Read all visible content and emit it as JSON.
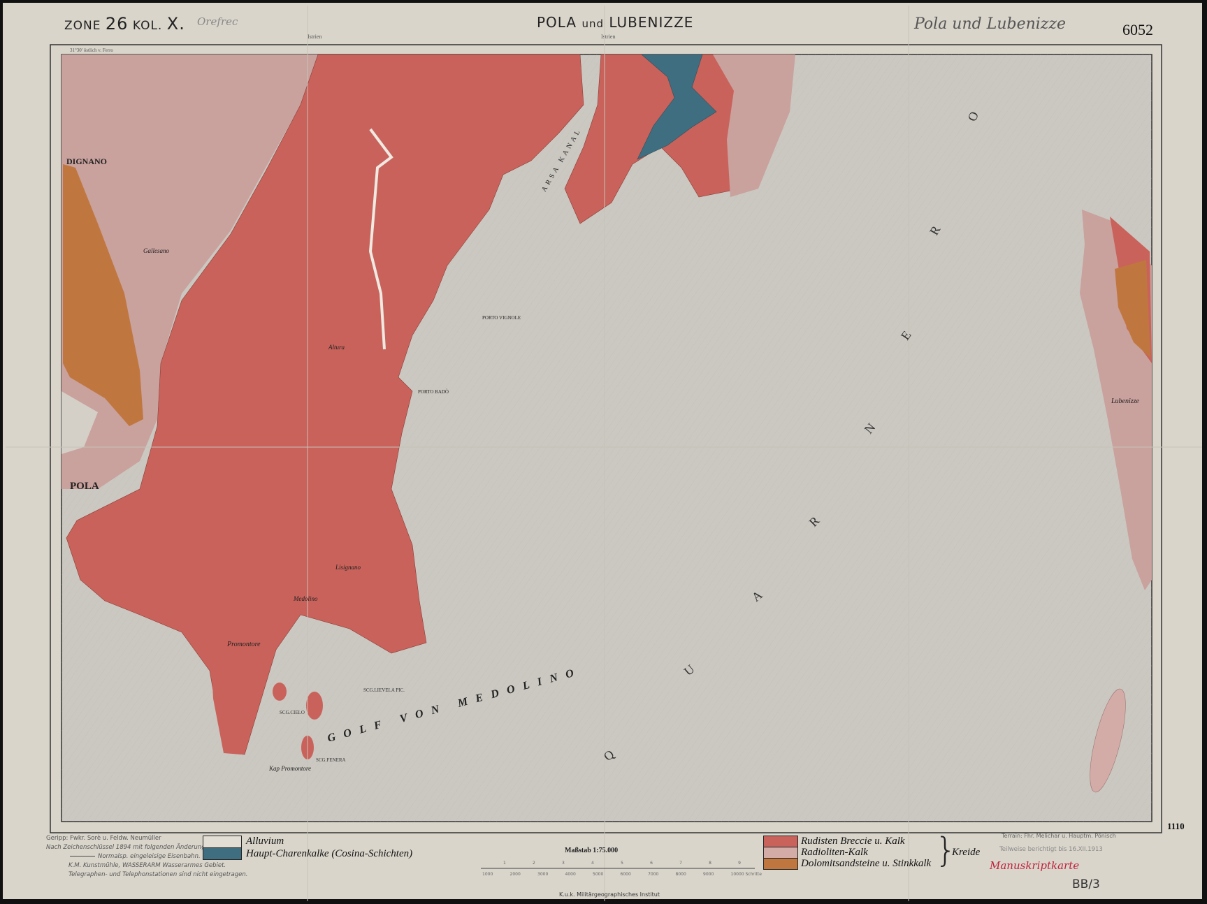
{
  "header": {
    "zone_label": "ZONE",
    "zone_number": "26",
    "kol_label": "KOL.",
    "kol_number": "X.",
    "pencil_note": "Orefrec",
    "title_main1": "POLA",
    "title_und": "und",
    "title_main2": "LUBENIZZE",
    "handwritten_title": "Pola und Lubenizze",
    "sheet_number": "6052",
    "region_label_top": "Istrien",
    "meridian_note": "31°30' östlich v. Ferro"
  },
  "map": {
    "place_names": {
      "dignano": "DIGNANO",
      "pola": "POLA",
      "gallesano": "Gallesano",
      "lubenizze": "Lubenizze",
      "promontore": "Promontore",
      "medolino": "Medolino",
      "lisignano": "Lisignano",
      "altura": "Altura",
      "porto_badò": "PORTO BADÒ",
      "porto_vignole": "PORTO VIGNOLE",
      "kap_promontore": "Kap Promontore",
      "scg_cielo": "SCG.CIELO",
      "scg_fenera": "SCG.FENERA",
      "scg_levela": "SCG.LIEVELA PIC.",
      "canale_arsa": "ARSA KANAL"
    },
    "sea_letters": [
      "Q",
      "U",
      "A",
      "R",
      "N",
      "E",
      "R",
      "O"
    ],
    "gulf_label": "GOLF VON MEDOLINO",
    "corner_number": "1110",
    "colors": {
      "sea": "#cbc8c1",
      "alluvium": "#dcd8cf",
      "haupt_charenkalke": "#3f6e80",
      "rudisten_breccie": "#c9625b",
      "radioliten_kalk": "#c9a19d",
      "dolomitsandsteine": "#c0773f"
    }
  },
  "legend": {
    "items": [
      {
        "label": "Alluvium",
        "color": "#e2ded6"
      },
      {
        "label": "Haupt-Charenkalke (Cosina-Schichten)",
        "color": "#3f6e80"
      },
      {
        "label": "Rudisten Breccie u. Kalk",
        "color": "#c9625b"
      },
      {
        "label": "Radioliten-Kalk",
        "color": "#d3aca8"
      },
      {
        "label": "Dolomitsandsteine u. Stinkkalk",
        "color": "#c0773f"
      }
    ],
    "group_label": "Kreide"
  },
  "footer": {
    "credits": [
      "Geripp: Fwkr. Sorè u. Feldw. Neumüller",
      "Nach Zeichenschlüssel 1894 mit folgenden Änderungen:",
      "Normalsp. eingeleisige Eisenbahn.",
      "K.M. Kunstmühle, WASSERARM Wasserarmes Gebiet.",
      "Telegraphen- und Telephonstationen sind nicht eingetragen."
    ],
    "scale_title": "Maßstab 1:75.000",
    "scale_km": [
      "1",
      "2",
      "3",
      "4",
      "5",
      "6",
      "7",
      "8",
      "9"
    ],
    "scale_steps": [
      "1000",
      "2000",
      "3000",
      "4000",
      "5000",
      "6000",
      "7000",
      "8000",
      "9000",
      "10000 Schritte"
    ],
    "institute": "K.u.k. Militärgeographisches Institut",
    "terrain_credit": "Terrain: Fhr. Melichar u. Hauptm. Pönisch",
    "corrected": "Teilweise berichtigt bis 16.XII.1913",
    "manuscript": "Manuskriptkarte",
    "archive_mark": "BB/3"
  }
}
